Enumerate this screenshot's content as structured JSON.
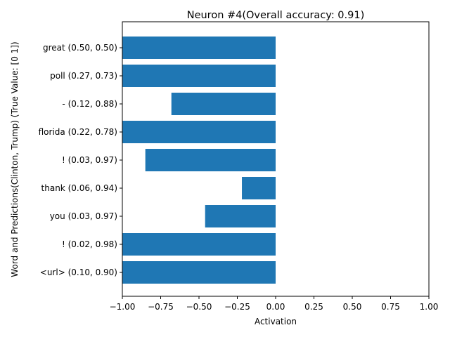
{
  "chart_data": {
    "type": "bar",
    "orientation": "horizontal",
    "title": "Neuron #4(Overall accuracy: 0.91)",
    "xlabel": "Activation",
    "ylabel": "Word and Predictions(Clinton, Trump) (True Value: [0 1])",
    "xlim": [
      -1.0,
      1.0
    ],
    "xticks": [
      -1.0,
      -0.75,
      -0.5,
      -0.25,
      0.0,
      0.25,
      0.5,
      0.75,
      1.0
    ],
    "xtick_labels": [
      "−1.00",
      "−0.75",
      "−0.50",
      "−0.25",
      "0.00",
      "0.25",
      "0.50",
      "0.75",
      "1.00"
    ],
    "categories": [
      "<url> (0.10, 0.90)",
      "! (0.02, 0.98)",
      "you (0.03, 0.97)",
      "thank (0.06, 0.94)",
      "! (0.03, 0.97)",
      "florida (0.22, 0.78)",
      "- (0.12, 0.88)",
      "poll (0.27, 0.73)",
      "great (0.50, 0.50)"
    ],
    "values": [
      -1.0,
      -1.0,
      -0.46,
      -0.22,
      -0.85,
      -1.0,
      -0.68,
      -1.0,
      -1.0
    ],
    "bar_color": "#1f77b4",
    "grid": false,
    "legend": "none"
  }
}
